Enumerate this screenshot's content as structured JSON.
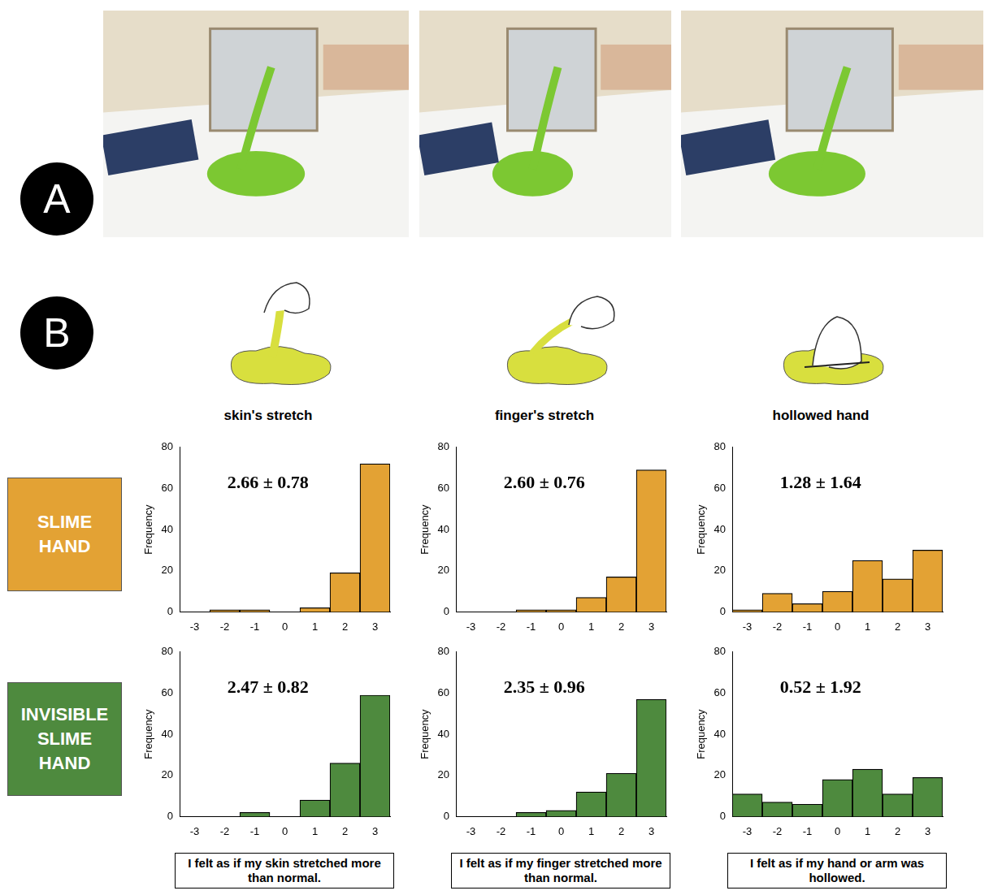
{
  "panel_labels": [
    "A",
    "B"
  ],
  "columns": [
    {
      "title": "skin's stretch",
      "question": "I felt as if my skin stretched more than normal."
    },
    {
      "title": "finger's stretch",
      "question": "I felt as if my finger stretched more than normal."
    },
    {
      "title": "hollowed hand",
      "question": "I felt as if my hand or arm was hollowed."
    }
  ],
  "rows": [
    "SLIME HAND",
    "INVISIBLE SLIME HAND"
  ],
  "row_colors": [
    "#e3a234",
    "#4e8a3e"
  ],
  "chart_data": [
    {
      "type": "bar",
      "annotation": "2.66 ± 0.78",
      "y_label": "Frequency",
      "categories": [
        -3,
        -2,
        -1,
        0,
        1,
        2,
        3
      ],
      "values": [
        0,
        1,
        1,
        0,
        2,
        19,
        72
      ],
      "color": "#e3a234",
      "ylim": [
        0,
        80
      ],
      "yticks": [
        0,
        20,
        40,
        60,
        80
      ],
      "grid": false
    },
    {
      "type": "bar",
      "annotation": "2.60 ± 0.76",
      "y_label": "Frequency",
      "categories": [
        -3,
        -2,
        -1,
        0,
        1,
        2,
        3
      ],
      "values": [
        0,
        0,
        1,
        1,
        7,
        17,
        69
      ],
      "color": "#e3a234",
      "ylim": [
        0,
        80
      ],
      "yticks": [
        0,
        20,
        40,
        60,
        80
      ],
      "grid": false
    },
    {
      "type": "bar",
      "annotation": "1.28 ± 1.64",
      "y_label": "Frequency",
      "categories": [
        -3,
        -2,
        -1,
        0,
        1,
        2,
        3
      ],
      "values": [
        1,
        9,
        4,
        10,
        25,
        16,
        30
      ],
      "color": "#e3a234",
      "ylim": [
        0,
        80
      ],
      "yticks": [
        0,
        20,
        40,
        60,
        80
      ],
      "grid": false
    },
    {
      "type": "bar",
      "annotation": "2.47 ± 0.82",
      "y_label": "Frequency",
      "categories": [
        -3,
        -2,
        -1,
        0,
        1,
        2,
        3
      ],
      "values": [
        0,
        0,
        2,
        0,
        8,
        26,
        59
      ],
      "color": "#4e8a3e",
      "ylim": [
        0,
        80
      ],
      "yticks": [
        0,
        20,
        40,
        60,
        80
      ],
      "grid": false
    },
    {
      "type": "bar",
      "annotation": "2.35 ± 0.96",
      "y_label": "Frequency",
      "categories": [
        -3,
        -2,
        -1,
        0,
        1,
        2,
        3
      ],
      "values": [
        0,
        0,
        2,
        3,
        12,
        21,
        57
      ],
      "color": "#4e8a3e",
      "ylim": [
        0,
        80
      ],
      "yticks": [
        0,
        20,
        40,
        60,
        80
      ],
      "grid": false
    },
    {
      "type": "bar",
      "annotation": "0.52 ± 1.92",
      "y_label": "Frequency",
      "categories": [
        -3,
        -2,
        -1,
        0,
        1,
        2,
        3
      ],
      "values": [
        11,
        7,
        6,
        18,
        23,
        11,
        19
      ],
      "color": "#4e8a3e",
      "ylim": [
        0,
        80
      ],
      "yticks": [
        0,
        20,
        40,
        60,
        80
      ],
      "grid": false
    }
  ]
}
